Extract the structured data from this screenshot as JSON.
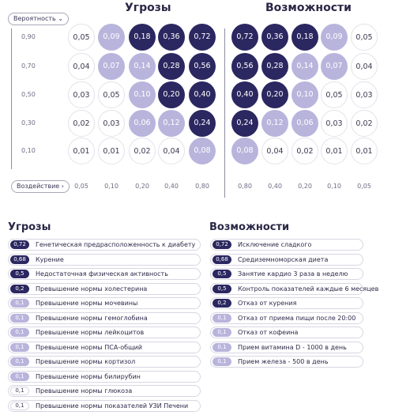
{
  "header": {
    "y_button_label": "Вероятность",
    "x_button_label": "Воздействие",
    "threats_title": "Угрозы",
    "opps_title": "Возможности"
  },
  "y_labels": [
    "0,90",
    "0,70",
    "0,50",
    "0,30",
    "0,10"
  ],
  "threats_x_labels": [
    "0,05",
    "0,10",
    "0,20",
    "0,40",
    "0,80"
  ],
  "opps_x_labels": [
    "0,80",
    "0,40",
    "0,20",
    "0,10",
    "0,05"
  ],
  "threats_grid": [
    [
      {
        "v": "0,05",
        "l": "none"
      },
      {
        "v": "0,09",
        "l": "mid"
      },
      {
        "v": "0,18",
        "l": "dark"
      },
      {
        "v": "0,36",
        "l": "dark"
      },
      {
        "v": "0,72",
        "l": "dark"
      }
    ],
    [
      {
        "v": "0,04",
        "l": "none"
      },
      {
        "v": "0,07",
        "l": "mid"
      },
      {
        "v": "0,14",
        "l": "mid"
      },
      {
        "v": "0,28",
        "l": "dark"
      },
      {
        "v": "0,56",
        "l": "dark"
      }
    ],
    [
      {
        "v": "0,03",
        "l": "none"
      },
      {
        "v": "0,05",
        "l": "none"
      },
      {
        "v": "0,10",
        "l": "mid"
      },
      {
        "v": "0,20",
        "l": "dark"
      },
      {
        "v": "0,40",
        "l": "dark"
      }
    ],
    [
      {
        "v": "0,02",
        "l": "none"
      },
      {
        "v": "0,03",
        "l": "none"
      },
      {
        "v": "0,06",
        "l": "mid"
      },
      {
        "v": "0,12",
        "l": "mid"
      },
      {
        "v": "0,24",
        "l": "dark"
      }
    ],
    [
      {
        "v": "0,01",
        "l": "none"
      },
      {
        "v": "0,01",
        "l": "none"
      },
      {
        "v": "0,02",
        "l": "none"
      },
      {
        "v": "0,04",
        "l": "none"
      },
      {
        "v": "0,08",
        "l": "mid"
      }
    ]
  ],
  "opps_grid": [
    [
      {
        "v": "0,72",
        "l": "dark"
      },
      {
        "v": "0,36",
        "l": "dark"
      },
      {
        "v": "0,18",
        "l": "dark"
      },
      {
        "v": "0,09",
        "l": "mid"
      },
      {
        "v": "0,05",
        "l": "none"
      }
    ],
    [
      {
        "v": "0,56",
        "l": "dark"
      },
      {
        "v": "0,28",
        "l": "dark"
      },
      {
        "v": "0,14",
        "l": "mid"
      },
      {
        "v": "0,07",
        "l": "mid"
      },
      {
        "v": "0,04",
        "l": "none"
      }
    ],
    [
      {
        "v": "0,40",
        "l": "dark"
      },
      {
        "v": "0,20",
        "l": "dark"
      },
      {
        "v": "0,10",
        "l": "mid"
      },
      {
        "v": "0,05",
        "l": "none"
      },
      {
        "v": "0,03",
        "l": "none"
      }
    ],
    [
      {
        "v": "0,24",
        "l": "dark"
      },
      {
        "v": "0,12",
        "l": "mid"
      },
      {
        "v": "0,06",
        "l": "mid"
      },
      {
        "v": "0,03",
        "l": "none"
      },
      {
        "v": "0,02",
        "l": "none"
      }
    ],
    [
      {
        "v": "0,08",
        "l": "mid"
      },
      {
        "v": "0,04",
        "l": "none"
      },
      {
        "v": "0,02",
        "l": "none"
      },
      {
        "v": "0,01",
        "l": "none"
      },
      {
        "v": "0,01",
        "l": "none"
      }
    ]
  ],
  "threats_list_title": "Угрозы",
  "opps_list_title": "Возможности",
  "threats_list": [
    {
      "score": "0,72",
      "l": "dark",
      "text": "Генетическая предрасположенность к диабету"
    },
    {
      "score": "0,68",
      "l": "dark",
      "text": "Курение"
    },
    {
      "score": "0,5",
      "l": "dark",
      "text": "Недостаточная физическая активность"
    },
    {
      "score": "0,2",
      "l": "dark",
      "text": "Превышение нормы холестерина"
    },
    {
      "score": "0,1",
      "l": "mid",
      "text": "Превышение нормы мочевины"
    },
    {
      "score": "0,1",
      "l": "mid",
      "text": "Превышение нормы гемоглобина"
    },
    {
      "score": "0,1",
      "l": "mid",
      "text": "Превышение нормы лейкоцитов"
    },
    {
      "score": "0,1",
      "l": "mid",
      "text": "Превышение нормы ПСА-общий"
    },
    {
      "score": "0,1",
      "l": "mid",
      "text": "Превышение нормы кортизол"
    },
    {
      "score": "0,1",
      "l": "mid",
      "text": "Превышение нормы билирубин"
    },
    {
      "score": "0,1",
      "l": "none",
      "text": "Превышение нормы глюкоза"
    },
    {
      "score": "0,1",
      "l": "none",
      "text": "Превышение нормы показателей УЗИ Печени"
    }
  ],
  "opps_list": [
    {
      "score": "0,72",
      "l": "dark",
      "text": "Исключение сладкого"
    },
    {
      "score": "0,68",
      "l": "dark",
      "text": "Средиземноморская диета"
    },
    {
      "score": "0,5",
      "l": "dark",
      "text": "Занятие кардио 3 раза в неделю"
    },
    {
      "score": "0,5",
      "l": "dark",
      "text": "Контроль показателей каждые 6 месяцев"
    },
    {
      "score": "0,2",
      "l": "dark",
      "text": "Отказ от курения"
    },
    {
      "score": "0,1",
      "l": "mid",
      "text": "Отказ от приема пищи после 20:00"
    },
    {
      "score": "0,1",
      "l": "mid",
      "text": "Отказ от кофеина"
    },
    {
      "score": "0,1",
      "l": "mid",
      "text": "Прием витамина D - 1000 в день"
    },
    {
      "score": "0,1",
      "l": "mid",
      "text": "Прием железа - 500 в день"
    }
  ],
  "colors": {
    "dark": "#2b2760",
    "mid": "#b9b4dc",
    "none": "#ffffff",
    "axis": "#8f8da0"
  },
  "icons": {
    "y_button": "chevron-down-icon",
    "x_button": "chevron-right-icon"
  }
}
